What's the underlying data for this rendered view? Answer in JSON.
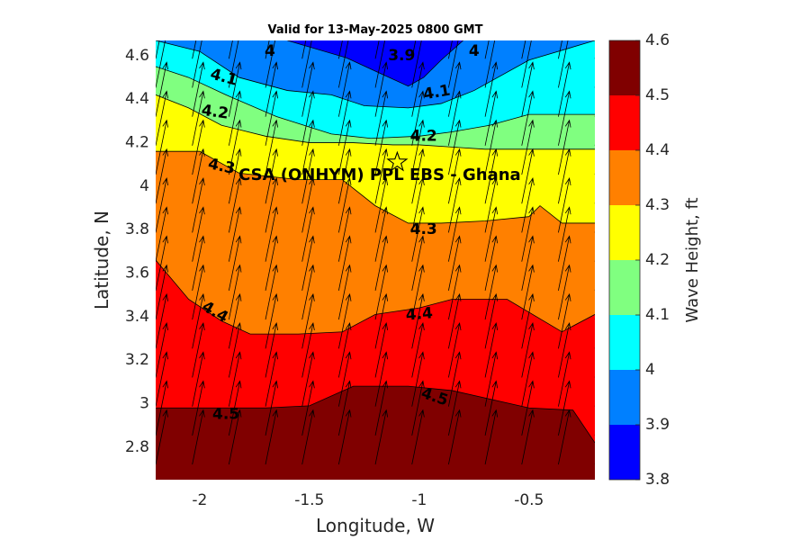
{
  "chart_data": {
    "type": "heatmap",
    "subtype": "filled-contour-with-quiver",
    "title": "Valid for 13-May-2025 0800 GMT",
    "xlabel": "Longitude, W",
    "ylabel": "Latitude, N",
    "xlim": [
      -2.2,
      -0.2
    ],
    "ylim": [
      2.65,
      4.67
    ],
    "xticks": [
      -2,
      -1.5,
      -1,
      -0.5
    ],
    "xtick_labels": [
      "-2",
      "-1.5",
      "-1",
      "-0.5"
    ],
    "yticks": [
      2.8,
      3.0,
      3.2,
      3.4,
      3.6,
      3.8,
      4.0,
      4.2,
      4.4,
      4.6
    ],
    "ytick_labels": [
      "2.8",
      "3",
      "3.2",
      "3.4",
      "3.6",
      "3.8",
      "4",
      "4.2",
      "4.4",
      "4.6"
    ],
    "colorbar": {
      "label": "Wave Height, ft",
      "range": [
        3.8,
        4.6
      ],
      "ticks": [
        "3.8",
        "3.9",
        "4",
        "4.1",
        "4.2",
        "4.3",
        "4.4",
        "4.5",
        "4.6"
      ],
      "colors": [
        "#0000ff",
        "#0080ff",
        "#00ffff",
        "#80ff80",
        "#ffff00",
        "#ff8000",
        "#ff0000",
        "#800000"
      ]
    },
    "contour_levels": [
      3.9,
      4.0,
      4.1,
      4.2,
      4.3,
      4.4,
      4.5
    ],
    "contours": [
      {
        "level": 3.9,
        "x": [
          -1.6,
          -1.33,
          -1.18,
          -1.05,
          -0.98,
          -0.9,
          -0.8
        ],
        "y": [
          4.67,
          4.59,
          4.52,
          4.46,
          4.5,
          4.58,
          4.67
        ]
      },
      {
        "level": 4.0,
        "x": [
          -2.2,
          -2.0,
          -1.82,
          -1.6,
          -1.4,
          -1.25,
          -1.05,
          -0.9,
          -0.75,
          -0.5,
          -0.2
        ],
        "y": [
          4.67,
          4.62,
          4.5,
          4.44,
          4.42,
          4.37,
          4.36,
          4.38,
          4.44,
          4.58,
          4.67
        ]
      },
      {
        "level": 4.1,
        "x": [
          -2.2,
          -2.05,
          -1.88,
          -1.65,
          -1.4,
          -1.22,
          -1.0,
          -0.85,
          -0.68,
          -0.5,
          -0.2
        ],
        "y": [
          4.55,
          4.5,
          4.42,
          4.32,
          4.24,
          4.22,
          4.23,
          4.25,
          4.28,
          4.33,
          4.33
        ]
      },
      {
        "level": 4.2,
        "x": [
          -2.2,
          -2.05,
          -1.9,
          -1.7,
          -1.5,
          -1.3,
          -1.12,
          -1.0,
          -0.85,
          -0.7,
          -0.5,
          -0.2
        ],
        "y": [
          4.42,
          4.36,
          4.28,
          4.23,
          4.2,
          4.2,
          4.19,
          4.19,
          4.18,
          4.17,
          4.17,
          4.17
        ]
      },
      {
        "level": 4.3,
        "x": [
          -2.2,
          -2.0,
          -1.82,
          -1.55,
          -1.35,
          -1.2,
          -1.05,
          -0.9,
          -0.7,
          -0.5,
          -0.45,
          -0.35,
          -0.2
        ],
        "y": [
          4.16,
          4.16,
          4.06,
          4.03,
          4.03,
          3.91,
          3.83,
          3.83,
          3.84,
          3.86,
          3.91,
          3.83,
          3.83
        ]
      },
      {
        "level": 4.4,
        "x": [
          -2.2,
          -2.05,
          -1.9,
          -1.77,
          -1.55,
          -1.35,
          -1.2,
          -1.0,
          -0.85,
          -0.6,
          -0.35,
          -0.2
        ],
        "y": [
          3.66,
          3.48,
          3.38,
          3.32,
          3.32,
          3.33,
          3.41,
          3.44,
          3.48,
          3.48,
          3.33,
          3.41
        ]
      },
      {
        "level": 4.5,
        "x": [
          -2.2,
          -1.9,
          -1.7,
          -1.5,
          -1.3,
          -1.05,
          -0.85,
          -0.5,
          -0.3,
          -0.2
        ],
        "y": [
          2.98,
          2.98,
          2.98,
          2.99,
          3.08,
          3.08,
          3.06,
          2.98,
          2.97,
          2.82
        ]
      }
    ],
    "contour_labels": [
      {
        "text": "3.9",
        "x": -1.08,
        "y": 4.6,
        "angle": 0
      },
      {
        "text": "4",
        "x": -1.68,
        "y": 4.62,
        "angle": 0
      },
      {
        "text": "4",
        "x": -0.75,
        "y": 4.62,
        "angle": 0
      },
      {
        "text": "4.1",
        "x": -1.89,
        "y": 4.5,
        "angle": 15
      },
      {
        "text": "4.1",
        "x": -0.92,
        "y": 4.43,
        "angle": -10
      },
      {
        "text": "4.2",
        "x": -1.93,
        "y": 4.34,
        "angle": 8
      },
      {
        "text": "4.2",
        "x": -0.98,
        "y": 4.23,
        "angle": 0
      },
      {
        "text": "4.3",
        "x": -1.9,
        "y": 4.09,
        "angle": 12
      },
      {
        "text": "4.3",
        "x": -0.98,
        "y": 3.8,
        "angle": 0
      },
      {
        "text": "4.4",
        "x": -1.93,
        "y": 3.42,
        "angle": 30
      },
      {
        "text": "4.4",
        "x": -1.0,
        "y": 3.41,
        "angle": -5
      },
      {
        "text": "4.5",
        "x": -1.88,
        "y": 2.95,
        "angle": 0
      },
      {
        "text": "4.5",
        "x": -0.93,
        "y": 3.03,
        "angle": 18
      }
    ],
    "site_marker": {
      "x": -1.1,
      "y": 4.11,
      "symbol": "pentagram"
    },
    "site_label": {
      "text": "CSA (ONHYM) PPL EBS  - Ghana",
      "x": -1.18,
      "y": 4.05
    },
    "quiver": {
      "x_start": -2.2,
      "x_step": 0.1667,
      "x_count": 13,
      "y_start": 2.72,
      "y_step": 0.1333,
      "y_count": 15,
      "dx": 0.05,
      "dy": 0.25
    }
  }
}
